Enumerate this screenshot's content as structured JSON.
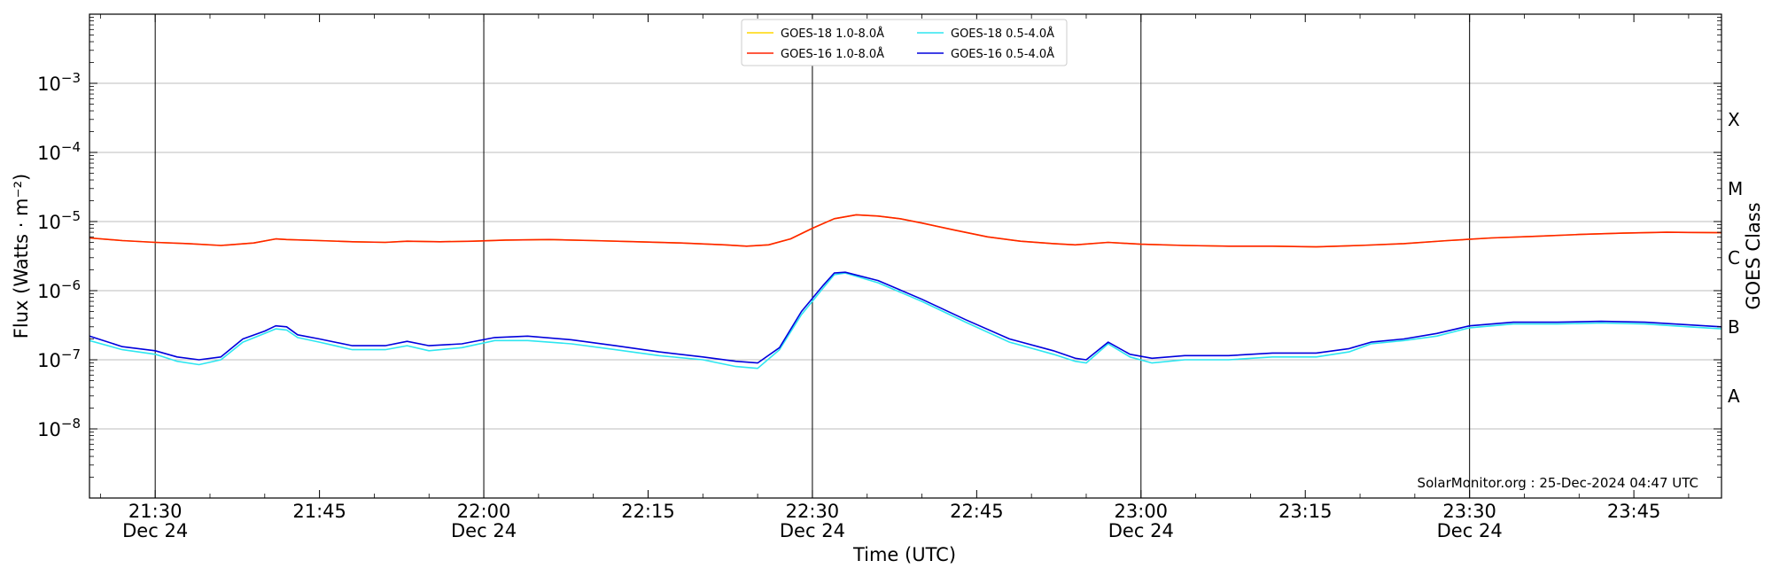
{
  "chart_data": {
    "type": "line",
    "xlabel": "Time (UTC)",
    "ylabel": "Flux (Watts · m⁻²)",
    "ylabel_right": "GOES Class",
    "y_scale": "log",
    "ylim": [
      1e-09,
      0.01
    ],
    "x_range": [
      "21:24",
      "23:53"
    ],
    "y_ticks": [
      {
        "exp": "-8",
        "value": 1e-08
      },
      {
        "exp": "-7",
        "value": 1e-07
      },
      {
        "exp": "-6",
        "value": 1e-06
      },
      {
        "exp": "-5",
        "value": 1e-05
      },
      {
        "exp": "-4",
        "value": 0.0001
      },
      {
        "exp": "-3",
        "value": 0.001
      }
    ],
    "x_ticks": [
      {
        "time": "21:30",
        "label": "21:30",
        "date": "Dec 24"
      },
      {
        "time": "21:45",
        "label": "21:45",
        "date": ""
      },
      {
        "time": "22:00",
        "label": "22:00",
        "date": "Dec 24"
      },
      {
        "time": "22:15",
        "label": "22:15",
        "date": ""
      },
      {
        "time": "22:30",
        "label": "22:30",
        "date": "Dec 24"
      },
      {
        "time": "22:45",
        "label": "22:45",
        "date": ""
      },
      {
        "time": "23:00",
        "label": "23:00",
        "date": "Dec 24"
      },
      {
        "time": "23:15",
        "label": "23:15",
        "date": ""
      },
      {
        "time": "23:30",
        "label": "23:30",
        "date": "Dec 24"
      },
      {
        "time": "23:45",
        "label": "23:45",
        "date": ""
      }
    ],
    "vertical_lines": [
      "21:30",
      "22:00",
      "22:30",
      "23:00",
      "23:30"
    ],
    "goes_classes": [
      {
        "label": "A",
        "value": 3e-08
      },
      {
        "label": "B",
        "value": 3e-07
      },
      {
        "label": "C",
        "value": 3e-06
      },
      {
        "label": "M",
        "value": 3e-05
      },
      {
        "label": "X",
        "value": 0.0003
      }
    ],
    "grid": "horizontal at decades",
    "legend_position": "top-center",
    "legend": [
      "GOES-18 1.0-8.0Å",
      "GOES-18 0.5-4.0Å",
      "GOES-16 1.0-8.0Å",
      "GOES-16 0.5-4.0Å"
    ],
    "series": [
      {
        "name": "GOES-18 1.0-8.0Å",
        "color": "#ffd700",
        "x": [
          "21:24",
          "21:27",
          "21:30",
          "21:33",
          "21:36",
          "21:39",
          "21:41",
          "21:42",
          "21:45",
          "21:48",
          "21:51",
          "21:53",
          "21:56",
          "21:59",
          "22:02",
          "22:06",
          "22:10",
          "22:14",
          "22:18",
          "22:22",
          "22:24",
          "22:26",
          "22:28",
          "22:30",
          "22:32",
          "22:34",
          "22:36",
          "22:38",
          "22:40",
          "22:43",
          "22:46",
          "22:49",
          "22:52",
          "22:54",
          "22:57",
          "23:00",
          "23:04",
          "23:08",
          "23:12",
          "23:16",
          "23:20",
          "23:24",
          "23:28",
          "23:32",
          "23:36",
          "23:40",
          "23:44",
          "23:48",
          "23:53"
        ],
        "y": [
          5.8e-06,
          5.3e-06,
          5e-06,
          4.8e-06,
          4.5e-06,
          4.9e-06,
          5.6e-06,
          5.5e-06,
          5.3e-06,
          5.1e-06,
          5e-06,
          5.2e-06,
          5.1e-06,
          5.2e-06,
          5.4e-06,
          5.5e-06,
          5.3e-06,
          5.1e-06,
          4.9e-06,
          4.6e-06,
          4.4e-06,
          4.6e-06,
          5.6e-06,
          8e-06,
          1.1e-05,
          1.25e-05,
          1.2e-05,
          1.1e-05,
          9.5e-06,
          7.5e-06,
          6e-06,
          5.2e-06,
          4.8e-06,
          4.6e-06,
          5e-06,
          4.7e-06,
          4.5e-06,
          4.4e-06,
          4.4e-06,
          4.3e-06,
          4.5e-06,
          4.8e-06,
          5.3e-06,
          5.8e-06,
          6.1e-06,
          6.5e-06,
          6.8e-06,
          7e-06,
          6.9e-06
        ]
      },
      {
        "name": "GOES-18 0.5-4.0Å",
        "color": "#2ee6f0",
        "x": [
          "21:24",
          "21:27",
          "21:30",
          "21:32",
          "21:34",
          "21:36",
          "21:38",
          "21:40",
          "21:41",
          "21:42",
          "21:43",
          "21:45",
          "21:48",
          "21:51",
          "21:53",
          "21:55",
          "21:58",
          "22:01",
          "22:04",
          "22:08",
          "22:12",
          "22:16",
          "22:20",
          "22:23",
          "22:25",
          "22:27",
          "22:29",
          "22:31",
          "22:32",
          "22:33",
          "22:36",
          "22:40",
          "22:44",
          "22:48",
          "22:52",
          "22:54",
          "22:55",
          "22:57",
          "22:59",
          "23:01",
          "23:04",
          "23:08",
          "23:12",
          "23:16",
          "23:19",
          "23:21",
          "23:24",
          "23:27",
          "23:30",
          "23:34",
          "23:38",
          "23:42",
          "23:46",
          "23:50",
          "23:53"
        ],
        "y": [
          1.9e-07,
          1.4e-07,
          1.2e-07,
          9.5e-08,
          8.5e-08,
          1e-07,
          1.8e-07,
          2.4e-07,
          2.8e-07,
          2.7e-07,
          2.1e-07,
          1.8e-07,
          1.4e-07,
          1.4e-07,
          1.6e-07,
          1.35e-07,
          1.5e-07,
          1.9e-07,
          1.9e-07,
          1.7e-07,
          1.4e-07,
          1.15e-07,
          1e-07,
          8e-08,
          7.5e-08,
          1.4e-07,
          4.5e-07,
          1.1e-06,
          1.7e-06,
          1.8e-06,
          1.3e-06,
          7e-07,
          3.5e-07,
          1.8e-07,
          1.2e-07,
          9.5e-08,
          9e-08,
          1.7e-07,
          1.1e-07,
          9e-08,
          1e-07,
          1e-07,
          1.1e-07,
          1.1e-07,
          1.3e-07,
          1.7e-07,
          1.9e-07,
          2.2e-07,
          2.9e-07,
          3.3e-07,
          3.3e-07,
          3.4e-07,
          3.3e-07,
          3e-07,
          2.8e-07
        ]
      },
      {
        "name": "GOES-16 1.0-8.0Å",
        "color": "#ff2200",
        "x": [
          "21:24",
          "21:27",
          "21:30",
          "21:33",
          "21:36",
          "21:39",
          "21:41",
          "21:42",
          "21:45",
          "21:48",
          "21:51",
          "21:53",
          "21:56",
          "21:59",
          "22:02",
          "22:06",
          "22:10",
          "22:14",
          "22:18",
          "22:22",
          "22:24",
          "22:26",
          "22:28",
          "22:30",
          "22:32",
          "22:34",
          "22:36",
          "22:38",
          "22:40",
          "22:43",
          "22:46",
          "22:49",
          "22:52",
          "22:54",
          "22:57",
          "23:00",
          "23:04",
          "23:08",
          "23:12",
          "23:16",
          "23:20",
          "23:24",
          "23:28",
          "23:32",
          "23:36",
          "23:40",
          "23:44",
          "23:48",
          "23:53"
        ],
        "y": [
          5.8e-06,
          5.3e-06,
          5e-06,
          4.8e-06,
          4.5e-06,
          4.9e-06,
          5.6e-06,
          5.5e-06,
          5.3e-06,
          5.1e-06,
          5e-06,
          5.2e-06,
          5.1e-06,
          5.2e-06,
          5.4e-06,
          5.5e-06,
          5.3e-06,
          5.1e-06,
          4.9e-06,
          4.6e-06,
          4.4e-06,
          4.6e-06,
          5.6e-06,
          8e-06,
          1.1e-05,
          1.25e-05,
          1.2e-05,
          1.1e-05,
          9.5e-06,
          7.5e-06,
          6e-06,
          5.2e-06,
          4.8e-06,
          4.6e-06,
          5e-06,
          4.7e-06,
          4.5e-06,
          4.4e-06,
          4.4e-06,
          4.3e-06,
          4.5e-06,
          4.8e-06,
          5.3e-06,
          5.8e-06,
          6.1e-06,
          6.5e-06,
          6.8e-06,
          7e-06,
          6.9e-06
        ]
      },
      {
        "name": "GOES-16 0.5-4.0Å",
        "color": "#0000dd",
        "x": [
          "21:24",
          "21:27",
          "21:30",
          "21:32",
          "21:34",
          "21:36",
          "21:38",
          "21:40",
          "21:41",
          "21:42",
          "21:43",
          "21:45",
          "21:48",
          "21:51",
          "21:53",
          "21:55",
          "21:58",
          "22:01",
          "22:04",
          "22:08",
          "22:12",
          "22:16",
          "22:20",
          "22:23",
          "22:25",
          "22:27",
          "22:29",
          "22:31",
          "22:32",
          "22:33",
          "22:36",
          "22:40",
          "22:44",
          "22:48",
          "22:52",
          "22:54",
          "22:55",
          "22:57",
          "22:59",
          "23:01",
          "23:04",
          "23:08",
          "23:12",
          "23:16",
          "23:19",
          "23:21",
          "23:24",
          "23:27",
          "23:30",
          "23:34",
          "23:38",
          "23:42",
          "23:46",
          "23:50",
          "23:53"
        ],
        "y": [
          2.2e-07,
          1.55e-07,
          1.35e-07,
          1.1e-07,
          1e-07,
          1.1e-07,
          2e-07,
          2.6e-07,
          3.1e-07,
          3e-07,
          2.3e-07,
          2e-07,
          1.6e-07,
          1.6e-07,
          1.85e-07,
          1.6e-07,
          1.7e-07,
          2.1e-07,
          2.2e-07,
          1.95e-07,
          1.6e-07,
          1.3e-07,
          1.1e-07,
          9.5e-08,
          9e-08,
          1.5e-07,
          5e-07,
          1.2e-06,
          1.8e-06,
          1.85e-06,
          1.4e-06,
          7.5e-07,
          3.8e-07,
          2e-07,
          1.35e-07,
          1.05e-07,
          1e-07,
          1.8e-07,
          1.2e-07,
          1.05e-07,
          1.15e-07,
          1.15e-07,
          1.25e-07,
          1.25e-07,
          1.45e-07,
          1.8e-07,
          2e-07,
          2.4e-07,
          3.1e-07,
          3.5e-07,
          3.5e-07,
          3.6e-07,
          3.5e-07,
          3.2e-07,
          3e-07
        ]
      }
    ],
    "annotation": "SolarMonitor.org : 25-Dec-2024 04:47 UTC"
  }
}
